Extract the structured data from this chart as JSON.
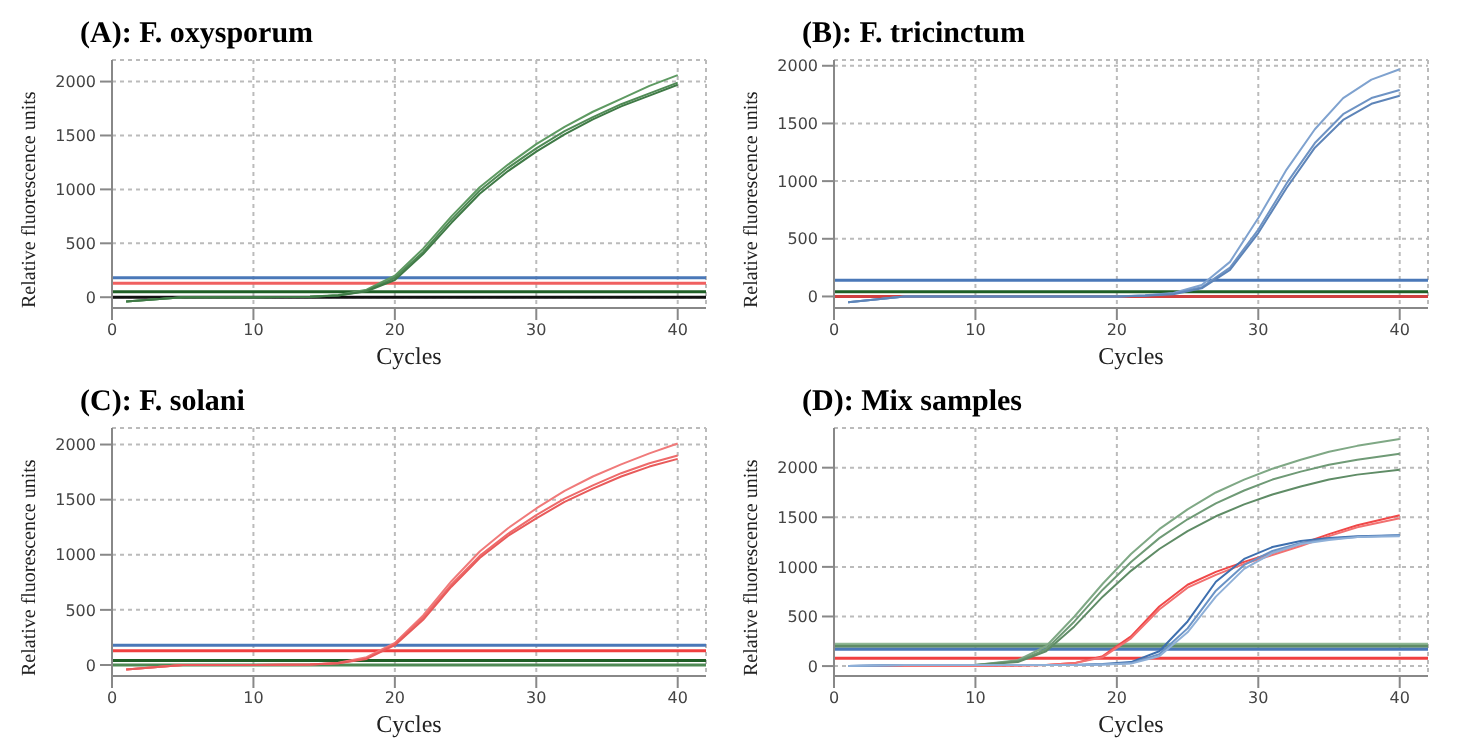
{
  "chart_data": [
    {
      "type": "line",
      "title": "(A): F. oxysporum",
      "xlabel": "Cycles",
      "ylabel": "Relative fluorescence units",
      "xlim": [
        0,
        42
      ],
      "xticks": [
        0,
        10,
        20,
        30,
        40
      ],
      "ylim": [
        -100,
        2200
      ],
      "yticks": [
        0,
        500,
        1000,
        1500,
        2000
      ],
      "grid": true,
      "x": [
        1,
        5,
        10,
        14,
        16,
        18,
        20,
        22,
        24,
        26,
        28,
        30,
        32,
        34,
        36,
        38,
        40
      ],
      "series": [
        {
          "color": "#5e9a62",
          "values": [
            -40,
            0,
            0,
            5,
            20,
            70,
            200,
            450,
            750,
            1020,
            1230,
            1420,
            1580,
            1720,
            1840,
            1960,
            2060
          ]
        },
        {
          "color": "#4f8a55",
          "values": [
            -40,
            0,
            0,
            5,
            15,
            60,
            180,
            420,
            720,
            990,
            1200,
            1380,
            1540,
            1670,
            1790,
            1890,
            1990
          ]
        },
        {
          "color": "#3f7a46",
          "values": [
            -40,
            0,
            0,
            5,
            15,
            55,
            160,
            400,
            690,
            960,
            1170,
            1350,
            1510,
            1650,
            1770,
            1870,
            1970
          ]
        }
      ],
      "ref_lines": [
        {
          "axis": "y",
          "value": 180,
          "color": "#4a78b8"
        },
        {
          "axis": "y",
          "value": 130,
          "color": "#f06060"
        },
        {
          "axis": "y",
          "value": 50,
          "color": "#1f5f26"
        },
        {
          "axis": "y",
          "value": 0,
          "color": "#111111"
        }
      ]
    },
    {
      "type": "line",
      "title": "(B): F. tricinctum",
      "xlabel": "Cycles",
      "ylabel": "Relative fluorescence units",
      "xlim": [
        0,
        42
      ],
      "xticks": [
        0,
        10,
        20,
        30,
        40
      ],
      "ylim": [
        -100,
        2050
      ],
      "yticks": [
        0,
        500,
        1000,
        1500,
        2000
      ],
      "grid": true,
      "x": [
        1,
        5,
        10,
        15,
        20,
        22,
        24,
        26,
        28,
        30,
        32,
        34,
        36,
        38,
        40
      ],
      "series": [
        {
          "color": "#7fa2cf",
          "values": [
            -50,
            0,
            0,
            0,
            0,
            10,
            30,
            100,
            300,
            680,
            1100,
            1450,
            1720,
            1880,
            1970
          ]
        },
        {
          "color": "#6e93c4",
          "values": [
            -50,
            0,
            0,
            0,
            0,
            8,
            25,
            80,
            250,
            580,
            980,
            1330,
            1580,
            1720,
            1790
          ]
        },
        {
          "color": "#5d84b8",
          "values": [
            -50,
            0,
            0,
            0,
            0,
            6,
            20,
            70,
            230,
            550,
            940,
            1290,
            1530,
            1670,
            1740
          ]
        }
      ],
      "ref_lines": [
        {
          "axis": "y",
          "value": 140,
          "color": "#4a78b8"
        },
        {
          "axis": "y",
          "value": 40,
          "color": "#1f5f26"
        },
        {
          "axis": "y",
          "value": 0,
          "color": "#d04040"
        }
      ]
    },
    {
      "type": "line",
      "title": "(C): F. solani",
      "xlabel": "Cycles",
      "ylabel": "Relative fluorescence units",
      "xlim": [
        0,
        42
      ],
      "xticks": [
        0,
        10,
        20,
        30,
        40
      ],
      "ylim": [
        -100,
        2150
      ],
      "yticks": [
        0,
        500,
        1000,
        1500,
        2000
      ],
      "grid": true,
      "x": [
        1,
        5,
        10,
        14,
        16,
        18,
        20,
        22,
        24,
        26,
        28,
        30,
        32,
        34,
        36,
        38,
        40
      ],
      "series": [
        {
          "color": "#f07a7a",
          "values": [
            -40,
            0,
            0,
            5,
            20,
            70,
            200,
            450,
            760,
            1030,
            1240,
            1420,
            1580,
            1710,
            1820,
            1920,
            2010
          ]
        },
        {
          "color": "#ee6a6a",
          "values": [
            -40,
            0,
            0,
            5,
            15,
            60,
            190,
            430,
            730,
            990,
            1190,
            1360,
            1510,
            1630,
            1740,
            1830,
            1900
          ]
        },
        {
          "color": "#e85a5a",
          "values": [
            -40,
            0,
            0,
            5,
            15,
            55,
            180,
            410,
            710,
            970,
            1170,
            1330,
            1480,
            1600,
            1710,
            1800,
            1870
          ]
        }
      ],
      "ref_lines": [
        {
          "axis": "y",
          "value": 180,
          "color": "#4a78b8"
        },
        {
          "axis": "y",
          "value": 130,
          "color": "#f04040"
        },
        {
          "axis": "y",
          "value": 40,
          "color": "#1f5f26"
        },
        {
          "axis": "y",
          "value": 0,
          "color": "#4f8a55"
        }
      ]
    },
    {
      "type": "line",
      "title": "(D): Mix samples",
      "xlabel": "Cycles",
      "ylabel": "Relative fluorescence units",
      "xlim": [
        0,
        42
      ],
      "xticks": [
        0,
        10,
        20,
        30,
        40
      ],
      "ylim": [
        -100,
        2400
      ],
      "yticks": [
        0,
        500,
        1000,
        1500,
        2000
      ],
      "grid": true,
      "x": [
        1,
        5,
        10,
        13,
        15,
        17,
        19,
        21,
        23,
        25,
        27,
        29,
        31,
        33,
        35,
        37,
        40
      ],
      "series": [
        {
          "color": "#7fa885",
          "values": [
            0,
            0,
            10,
            60,
            200,
            500,
            830,
            1130,
            1380,
            1580,
            1750,
            1880,
            1990,
            2080,
            2160,
            2220,
            2290
          ]
        },
        {
          "color": "#6f9a76",
          "values": [
            0,
            0,
            10,
            50,
            170,
            450,
            770,
            1050,
            1290,
            1480,
            1640,
            1770,
            1880,
            1960,
            2030,
            2080,
            2140
          ]
        },
        {
          "color": "#5f8c66",
          "values": [
            0,
            0,
            10,
            40,
            150,
            400,
            700,
            960,
            1180,
            1360,
            1510,
            1630,
            1730,
            1810,
            1880,
            1930,
            1980
          ]
        },
        {
          "color": "#f04848",
          "values": [
            0,
            0,
            0,
            5,
            10,
            30,
            100,
            300,
            600,
            820,
            950,
            1050,
            1140,
            1230,
            1330,
            1420,
            1520
          ]
        },
        {
          "color": "#f27070",
          "values": [
            0,
            0,
            0,
            5,
            10,
            30,
            90,
            280,
            570,
            790,
            920,
            1030,
            1120,
            1210,
            1310,
            1400,
            1490
          ]
        },
        {
          "color": "#3e6fae",
          "values": [
            0,
            10,
            10,
            10,
            10,
            10,
            20,
            40,
            150,
            450,
            850,
            1080,
            1200,
            1260,
            1290,
            1310,
            1320
          ]
        },
        {
          "color": "#6a93c6",
          "values": [
            0,
            10,
            10,
            10,
            10,
            10,
            15,
            30,
            120,
            380,
            760,
            1020,
            1160,
            1240,
            1280,
            1300,
            1320
          ]
        },
        {
          "color": "#8fb0d8",
          "values": [
            0,
            10,
            10,
            10,
            10,
            10,
            15,
            25,
            100,
            340,
            700,
            980,
            1140,
            1230,
            1270,
            1300,
            1310
          ]
        }
      ],
      "ref_lines": [
        {
          "axis": "y",
          "value": 220,
          "color": "#8fb894"
        },
        {
          "axis": "y",
          "value": 200,
          "color": "#5f8c66"
        },
        {
          "axis": "y",
          "value": 170,
          "color": "#4a78b8"
        },
        {
          "axis": "y",
          "value": 80,
          "color": "#f04040"
        }
      ]
    }
  ]
}
